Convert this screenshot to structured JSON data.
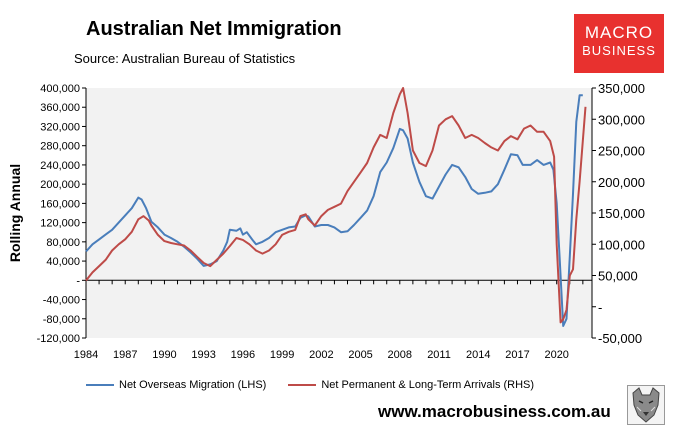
{
  "header": {
    "title": "Australian Net Immigration",
    "source": "Source: Australian Bureau of Statistics"
  },
  "logo": {
    "line1": "MACRO",
    "line2": "BUSINESS"
  },
  "footer": {
    "url": "www.macrobusiness.com.au"
  },
  "colors": {
    "lhs_series": "#4a7ebb",
    "rhs_series": "#be4b48",
    "plot_bg": "#f2f2f2",
    "logo_bg": "#e8312f"
  },
  "chart_data": {
    "type": "line",
    "title": "Australian Net Immigration",
    "ylabel": "Rolling Annual",
    "x_ticks": [
      "1984",
      "1987",
      "1990",
      "1993",
      "1996",
      "1999",
      "2002",
      "2005",
      "2008",
      "2011",
      "2014",
      "2017",
      "2020"
    ],
    "y_left": {
      "range": [
        -120000,
        400000
      ],
      "ticks": [
        "-120,000",
        "-80,000",
        "-40,000",
        "-",
        "40,000",
        "80,000",
        "120,000",
        "160,000",
        "200,000",
        "240,000",
        "280,000",
        "320,000",
        "360,000",
        "400,000"
      ]
    },
    "y_right": {
      "range": [
        -50000,
        350000
      ],
      "ticks": [
        "-50,000",
        "-",
        "50,000",
        "100,000",
        "150,000",
        "200,000",
        "250,000",
        "300,000",
        "350,000"
      ]
    },
    "grid": false,
    "legend_position": "bottom",
    "series": [
      {
        "name": "Net Overseas Migration (LHS)",
        "axis": "left",
        "x": [
          1984.0,
          1984.5,
          1985.0,
          1985.5,
          1986.0,
          1986.5,
          1987.0,
          1987.5,
          1988.0,
          1988.25,
          1988.6,
          1989.0,
          1989.5,
          1990.0,
          1990.5,
          1991.0,
          1991.5,
          1992.0,
          1992.5,
          1993.0,
          1993.5,
          1994.0,
          1994.5,
          1994.8,
          1995.0,
          1995.5,
          1995.8,
          1996.0,
          1996.3,
          1996.7,
          1997.0,
          1997.5,
          1998.0,
          1998.5,
          1999.0,
          1999.5,
          2000.0,
          2000.4,
          2000.8,
          2001.0,
          2001.5,
          2002.0,
          2002.5,
          2003.0,
          2003.5,
          2004.0,
          2004.5,
          2005.0,
          2005.5,
          2006.0,
          2006.5,
          2007.0,
          2007.5,
          2008.0,
          2008.25,
          2008.6,
          2009.0,
          2009.5,
          2010.0,
          2010.5,
          2011.0,
          2011.5,
          2012.0,
          2012.5,
          2013.0,
          2013.5,
          2014.0,
          2014.5,
          2015.0,
          2015.5,
          2016.0,
          2016.5,
          2017.0,
          2017.4,
          2018.0,
          2018.5,
          2019.0,
          2019.5,
          2019.75,
          2020.0,
          2020.2,
          2020.5,
          2020.75,
          2021.0,
          2021.25,
          2021.5,
          2021.75,
          2022.0
        ],
        "values": [
          60000,
          75000,
          85000,
          95000,
          105000,
          120000,
          135000,
          150000,
          172000,
          168000,
          150000,
          122000,
          110000,
          95000,
          88000,
          80000,
          70000,
          58000,
          45000,
          30000,
          33000,
          40000,
          62000,
          80000,
          105000,
          103000,
          108000,
          95000,
          100000,
          85000,
          75000,
          80000,
          88000,
          100000,
          105000,
          110000,
          112000,
          130000,
          135000,
          133000,
          112000,
          115000,
          115000,
          110000,
          100000,
          102000,
          115000,
          130000,
          145000,
          175000,
          225000,
          245000,
          275000,
          315000,
          312000,
          295000,
          245000,
          205000,
          175000,
          170000,
          195000,
          220000,
          240000,
          235000,
          215000,
          190000,
          180000,
          182000,
          185000,
          200000,
          230000,
          262000,
          260000,
          240000,
          240000,
          250000,
          240000,
          245000,
          230000,
          160000,
          60000,
          -95000,
          -80000,
          50000,
          180000,
          330000,
          385000,
          385000
        ]
      },
      {
        "name": "Net Permanent & Long-Term Arrivals (RHS)",
        "axis": "right",
        "x": [
          1984.0,
          1984.5,
          1985.0,
          1985.5,
          1986.0,
          1986.5,
          1987.0,
          1987.5,
          1988.0,
          1988.4,
          1988.8,
          1989.0,
          1989.5,
          1990.0,
          1990.5,
          1991.0,
          1991.5,
          1992.0,
          1992.5,
          1993.0,
          1993.5,
          1994.0,
          1994.5,
          1995.0,
          1995.5,
          1996.0,
          1996.5,
          1997.0,
          1997.5,
          1998.0,
          1998.5,
          1999.0,
          1999.5,
          2000.0,
          2000.4,
          2000.8,
          2001.0,
          2001.5,
          2002.0,
          2002.5,
          2003.0,
          2003.5,
          2004.0,
          2004.5,
          2005.0,
          2005.5,
          2006.0,
          2006.5,
          2007.0,
          2007.5,
          2008.0,
          2008.25,
          2008.6,
          2009.0,
          2009.5,
          2010.0,
          2010.5,
          2011.0,
          2011.5,
          2012.0,
          2012.5,
          2013.0,
          2013.5,
          2014.0,
          2014.5,
          2015.0,
          2015.5,
          2016.0,
          2016.5,
          2017.0,
          2017.5,
          2018.0,
          2018.5,
          2019.0,
          2019.5,
          2019.8,
          2020.0,
          2020.3,
          2020.5,
          2020.75,
          2021.0,
          2021.25,
          2021.5,
          2021.75,
          2022.0,
          2022.2
        ],
        "values": [
          42000,
          55000,
          65000,
          75000,
          90000,
          100000,
          108000,
          120000,
          140000,
          145000,
          138000,
          130000,
          115000,
          105000,
          102000,
          100000,
          98000,
          90000,
          80000,
          70000,
          65000,
          75000,
          85000,
          97000,
          110000,
          107000,
          100000,
          90000,
          85000,
          90000,
          100000,
          115000,
          120000,
          123000,
          145000,
          148000,
          140000,
          130000,
          145000,
          155000,
          160000,
          165000,
          185000,
          200000,
          215000,
          230000,
          255000,
          275000,
          270000,
          310000,
          340000,
          350000,
          310000,
          250000,
          230000,
          225000,
          250000,
          290000,
          300000,
          305000,
          290000,
          270000,
          275000,
          270000,
          262000,
          255000,
          250000,
          265000,
          273000,
          268000,
          285000,
          290000,
          280000,
          280000,
          265000,
          240000,
          100000,
          -25000,
          -20000,
          -5000,
          50000,
          60000,
          140000,
          200000,
          265000,
          320000
        ]
      }
    ]
  }
}
